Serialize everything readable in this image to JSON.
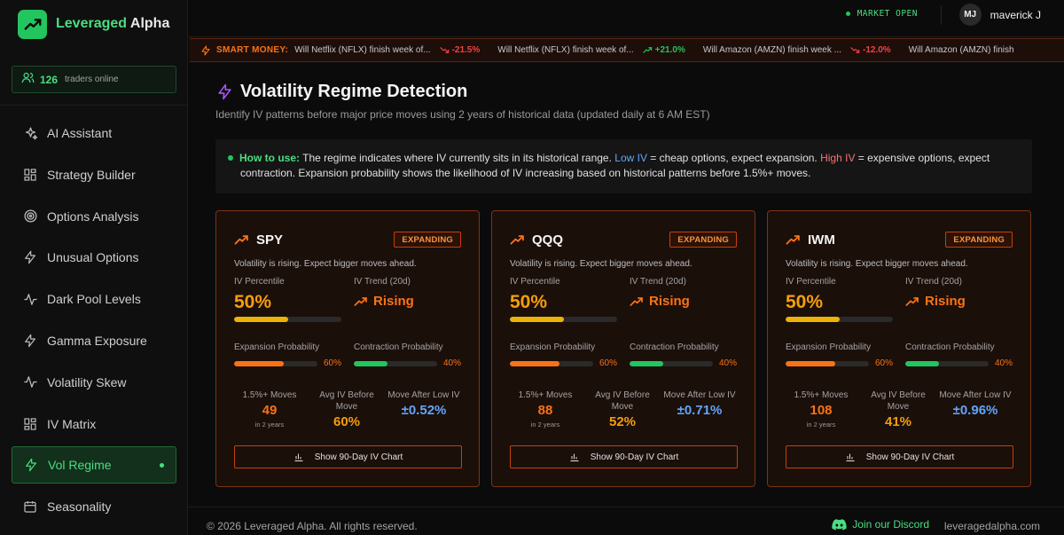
{
  "brand": {
    "name_part1": "Leveraged",
    "name_part2": " Alpha",
    "accent": "#4ade80"
  },
  "online": {
    "count": "126",
    "label": "traders online"
  },
  "nav": {
    "items": [
      {
        "label": "AI Assistant",
        "icon": "sparkles-icon"
      },
      {
        "label": "Strategy Builder",
        "icon": "grid-icon"
      },
      {
        "label": "Options Analysis",
        "icon": "target-icon"
      },
      {
        "label": "Unusual Options",
        "icon": "lightning-icon"
      },
      {
        "label": "Dark Pool Levels",
        "icon": "pulse-icon"
      },
      {
        "label": "Gamma Exposure",
        "icon": "lightning-icon"
      },
      {
        "label": "Volatility Skew",
        "icon": "pulse-icon"
      },
      {
        "label": "IV Matrix",
        "icon": "grid-icon"
      },
      {
        "label": "Vol Regime",
        "icon": "lightning-icon",
        "active": true
      },
      {
        "label": "Seasonality",
        "icon": "calendar-icon"
      }
    ]
  },
  "header": {
    "market_status": "MARKET OPEN",
    "user_initials": "MJ",
    "user_name": "maverick J"
  },
  "ticker": {
    "label": "SMART MONEY:",
    "items": [
      {
        "text": "Will Netflix (NFLX) finish week of...",
        "change": "-21.5%",
        "direction": "down"
      },
      {
        "text": "Will Netflix (NFLX) finish week of...",
        "change": "+21.0%",
        "direction": "up"
      },
      {
        "text": "Will Amazon (AMZN) finish week ...",
        "change": "-12.0%",
        "direction": "down"
      },
      {
        "text": "Will Amazon (AMZN) finish",
        "change": "",
        "direction": ""
      }
    ]
  },
  "page": {
    "title": "Volatility Regime Detection",
    "subtitle": "Identify IV patterns before major price moves using 2 years of historical data (updated daily at 6 AM EST)"
  },
  "info": {
    "how_label": "How to use:",
    "part1": " The regime indicates where IV currently sits in its historical range. ",
    "low_label": "Low IV",
    "part2": " = cheap options, expect expansion. ",
    "high_label": "High IV",
    "part3": " = expensive options, expect",
    "line2": "contraction. Expansion probability shows the likelihood of IV increasing based on historical patterns before 1.5%+ moves."
  },
  "labels": {
    "iv_percentile": "IV Percentile",
    "iv_trend": "IV Trend (20d)",
    "expansion_prob": "Expansion Probability",
    "contraction_prob": "Contraction Probability",
    "moves": "1.5%+ Moves",
    "in_2_years": "in 2 years",
    "avg_iv_before": "Avg IV Before Move",
    "move_after_low": "Move After Low IV",
    "chart_button": "Show 90-Day IV Chart"
  },
  "cards": [
    {
      "symbol": "SPY",
      "regime": "EXPANDING",
      "description": "Volatility is rising. Expect bigger moves ahead.",
      "iv_percentile": "50%",
      "iv_percentile_value": 0.5,
      "trend": "Rising",
      "expansion": "60%",
      "expansion_value": 0.6,
      "contraction": "40%",
      "contraction_value": 0.4,
      "moves": "49",
      "avg_iv": "60%",
      "move_after": "±0.52%"
    },
    {
      "symbol": "QQQ",
      "regime": "EXPANDING",
      "description": "Volatility is rising. Expect bigger moves ahead.",
      "iv_percentile": "50%",
      "iv_percentile_value": 0.5,
      "trend": "Rising",
      "expansion": "60%",
      "expansion_value": 0.6,
      "contraction": "40%",
      "contraction_value": 0.4,
      "moves": "88",
      "avg_iv": "52%",
      "move_after": "±0.71%"
    },
    {
      "symbol": "IWM",
      "regime": "EXPANDING",
      "description": "Volatility is rising. Expect bigger moves ahead.",
      "iv_percentile": "50%",
      "iv_percentile_value": 0.5,
      "trend": "Rising",
      "expansion": "60%",
      "expansion_value": 0.6,
      "contraction": "40%",
      "contraction_value": 0.4,
      "moves": "108",
      "avg_iv": "41%",
      "move_after": "±0.96%"
    }
  ],
  "colors": {
    "expansion_bar": "#f97316",
    "contraction_bar": "#22c55e",
    "iv_bar": "#eab308",
    "moves": "#f97316",
    "avg_iv": "#f59e0b",
    "move_after": "#60a5fa"
  },
  "footer": {
    "copyright": "© 2026 Leveraged Alpha. All rights reserved.",
    "discord": "Join our Discord",
    "site": "leveragedalpha.com"
  }
}
